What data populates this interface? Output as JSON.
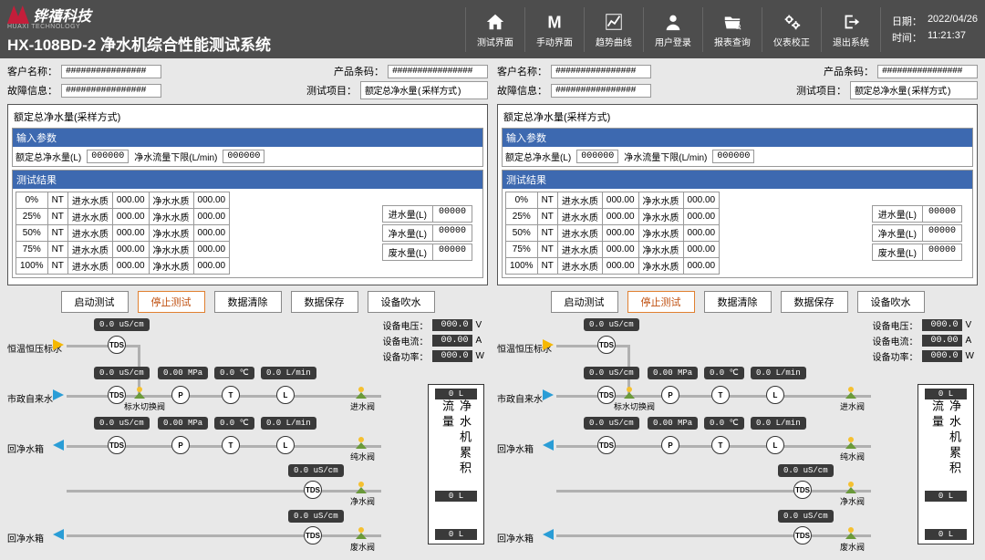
{
  "header": {
    "company_cn": "铧禧科技",
    "company_en": "HUAXI TECHNOLOGY",
    "system_title": "HX-108BD-2 净水机综合性能测试系统",
    "date_lbl": "日期：",
    "date": "2022/04/26",
    "time_lbl": "时间：",
    "time": "11:21:37"
  },
  "nav": [
    {
      "id": "test",
      "label": "测试界面",
      "icon": "home"
    },
    {
      "id": "manual",
      "label": "手动界面",
      "icon": "M"
    },
    {
      "id": "trend",
      "label": "趋势曲线",
      "icon": "chart"
    },
    {
      "id": "login",
      "label": "用户登录",
      "icon": "user"
    },
    {
      "id": "report",
      "label": "报表查询",
      "icon": "folder"
    },
    {
      "id": "calib",
      "label": "仪表校正",
      "icon": "gears"
    },
    {
      "id": "exit",
      "label": "退出系统",
      "icon": "exit"
    }
  ],
  "info": {
    "customer_lbl": "客户名称：",
    "customer": "################",
    "barcode_lbl": "产品条码：",
    "barcode": "################",
    "fault_lbl": "故障信息：",
    "fault": "################",
    "item_lbl": "测试项目：",
    "item": "额定总净水量(采样方式)"
  },
  "panel": {
    "title": "额定总净水量(采样方式)",
    "input_hdr": "输入参数",
    "p1_lbl": "额定总净水量(L)",
    "p1_val": "000000",
    "p2_lbl": "净水流量下限(L/min)",
    "p2_val": "000000",
    "result_hdr": "测试结果",
    "rows": [
      {
        "pct": "0%",
        "nt": "NT",
        "c1": "进水水质",
        "v1": "000.00",
        "c2": "净水水质",
        "v2": "000.00"
      },
      {
        "pct": "25%",
        "nt": "NT",
        "c1": "进水水质",
        "v1": "000.00",
        "c2": "净水水质",
        "v2": "000.00"
      },
      {
        "pct": "50%",
        "nt": "NT",
        "c1": "进水水质",
        "v1": "000.00",
        "c2": "净水水质",
        "v2": "000.00"
      },
      {
        "pct": "75%",
        "nt": "NT",
        "c1": "进水水质",
        "v1": "000.00",
        "c2": "净水水质",
        "v2": "000.00"
      },
      {
        "pct": "100%",
        "nt": "NT",
        "c1": "进水水质",
        "v1": "000.00",
        "c2": "净水水质",
        "v2": "000.00"
      }
    ],
    "summary": [
      {
        "lbl": "进水量(L)",
        "val": "00000"
      },
      {
        "lbl": "净水量(L)",
        "val": "00000"
      },
      {
        "lbl": "废水量(L)",
        "val": "00000"
      }
    ],
    "buttons": [
      "启动测试",
      "停止测试",
      "数据清除",
      "数据保存",
      "设备吹水"
    ]
  },
  "diagram": {
    "lines": [
      "恒温恒压标水",
      "市政自来水",
      "回净水箱",
      "回净水箱"
    ],
    "tds": "TDS",
    "node_P": "P",
    "node_T": "T",
    "node_L": "L",
    "badge_us": "0.0 uS/cm",
    "badge_mpa": "0.00 MPa",
    "badge_c": "0.0 ℃",
    "badge_lmin": "0.0 L/min",
    "valves": [
      "标水切换阀",
      "进水阀",
      "纯水阀",
      "净水阀",
      "废水阀"
    ],
    "stats": [
      {
        "lbl": "设备电压：",
        "val": "000.0",
        "unit": "V"
      },
      {
        "lbl": "设备电流：",
        "val": "00.00",
        "unit": "A"
      },
      {
        "lbl": "设备功率：",
        "val": "000.0",
        "unit": "W"
      }
    ],
    "acc_title": "净水机累积流量",
    "acc_vals": [
      "0 L",
      "0 L",
      "0 L"
    ]
  },
  "colors": {
    "header": "#4d4d4d",
    "blue": "#3d69b0",
    "badge": "#3a3a3a",
    "arrow_y": "#f5b800",
    "arrow_b": "#2a9dd6",
    "btn_active": "#e08030"
  }
}
